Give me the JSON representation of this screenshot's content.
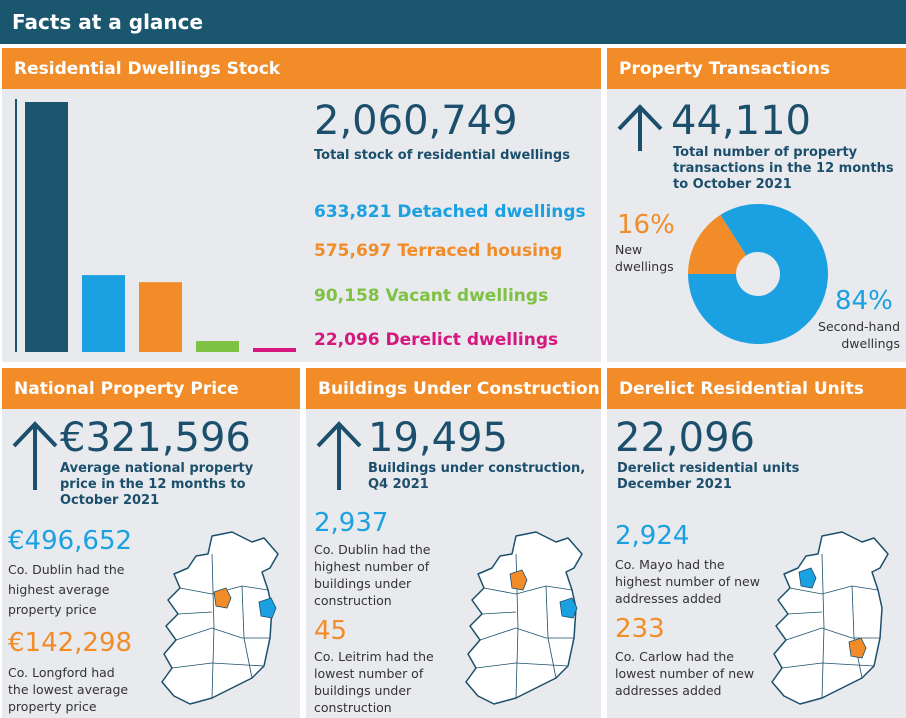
{
  "header": {
    "title": "Facts at a glance"
  },
  "colors": {
    "dark": "#1b566f",
    "orange": "#f28c28",
    "blue": "#1ba1e2",
    "green": "#7dc242",
    "magenta": "#d6177d",
    "panel": "#e8eaee"
  },
  "stock": {
    "title": "Residential Dwellings Stock",
    "total": "2,060,749",
    "total_label": "Total stock of residential dwellings",
    "items": [
      {
        "text": "633,821 Detached dwellings",
        "color": "#1ba1e2"
      },
      {
        "text": "575,697 Terraced housing",
        "color": "#f28c28"
      },
      {
        "text": "90,158 Vacant dwellings",
        "color": "#7dc242"
      },
      {
        "text": "22,096 Derelict dwellings",
        "color": "#d6177d"
      }
    ]
  },
  "transactions": {
    "title": "Property Transactions",
    "icon": "arrow-up-icon",
    "value": "44,110",
    "label": "Total number of property transactions in the 12 months to October 2021",
    "new_pct": "16%",
    "new_label": "New dwellings",
    "second_pct": "84%",
    "second_label": "Second-hand dwellings"
  },
  "price": {
    "title": "National Property Price",
    "icon": "arrow-up-icon",
    "value": "€321,596",
    "label": "Average national property price in the 12 months to October 2021",
    "high_value": "€496,652",
    "high_label": "Co. Dublin had the highest average property price",
    "low_value": "€142,298",
    "low_label": "Co. Longford had the lowest average property price"
  },
  "construction": {
    "title": "Buildings Under Construction",
    "icon": "arrow-up-icon",
    "value": "19,495",
    "label": "Buildings under construction, Q4 2021",
    "high_value": "2,937",
    "high_label": "Co. Dublin had the highest number of buildings under construction",
    "low_value": "45",
    "low_label": "Co. Leitrim had the lowest number of buildings under construction"
  },
  "derelict": {
    "title": "Derelict Residential Units",
    "value": "22,096",
    "label": "Derelict residential units December 2021",
    "high_value": "2,924",
    "high_label": "Co. Mayo had the highest number of new addresses added",
    "low_value": "233",
    "low_label": "Co. Carlow had the lowest number of new addresses added"
  },
  "chart_data": [
    {
      "type": "bar",
      "categories": [
        "Total",
        "Detached",
        "Terraced",
        "Vacant",
        "Derelict"
      ],
      "values": [
        2060749,
        633821,
        575697,
        90158,
        22096
      ],
      "colors": [
        "#1b566f",
        "#1ba1e2",
        "#f28c28",
        "#7dc242",
        "#d6177d"
      ],
      "grid": false
    },
    {
      "type": "pie",
      "variant": "donut",
      "categories": [
        "New dwellings",
        "Second-hand dwellings"
      ],
      "values": [
        16,
        84
      ],
      "colors": [
        "#f28c28",
        "#1ba1e2"
      ]
    }
  ]
}
